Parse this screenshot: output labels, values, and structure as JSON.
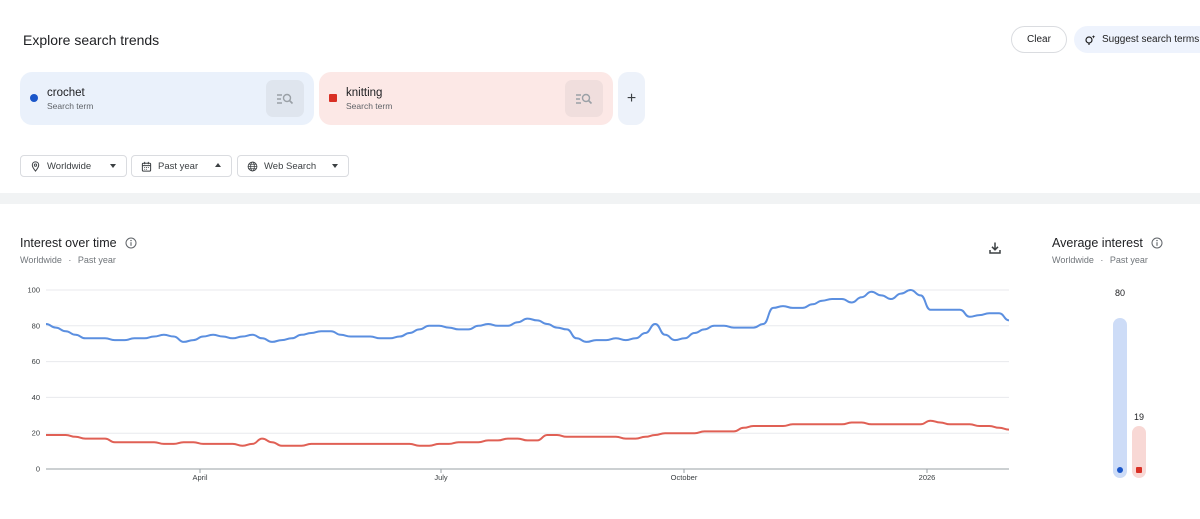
{
  "header": {
    "title": "Explore search trends",
    "clear_label": "Clear",
    "suggest_label": "Suggest search terms"
  },
  "terms": [
    {
      "name": "crochet",
      "subtitle": "Search term",
      "color": "#1a56c9",
      "bg": "#eaf1fb",
      "icon_bg": "#dfe5ee"
    },
    {
      "name": "knitting",
      "subtitle": "Search term",
      "color": "#d93025",
      "bg": "#fce8e6",
      "icon_bg": "#f0dedd"
    }
  ],
  "filters": {
    "location": "Worldwide",
    "period": "Past year",
    "property": "Web Search"
  },
  "interest_over_time": {
    "title": "Interest over time",
    "sub_location": "Worldwide",
    "sub_sep": "·",
    "sub_period": "Past year"
  },
  "average_interest": {
    "title": "Average interest",
    "sub_location": "Worldwide",
    "sub_sep": "·",
    "sub_period": "Past year",
    "values": [
      "80",
      "19"
    ]
  },
  "chart_data": {
    "type": "line",
    "x_tick_labels": [
      "April",
      "July",
      "October",
      "2026"
    ],
    "y_ticks": [
      0,
      20,
      40,
      60,
      80,
      100
    ],
    "ylim": [
      0,
      100
    ],
    "grid": true,
    "series": [
      {
        "name": "crochet",
        "color": "#5b8fe0",
        "values": [
          81,
          79,
          77,
          75,
          73,
          73,
          73,
          72,
          72,
          73,
          73,
          74,
          75,
          74,
          71,
          72,
          74,
          75,
          74,
          73,
          74,
          75,
          73,
          71,
          72,
          73,
          75,
          76,
          77,
          77,
          75,
          74,
          74,
          74,
          73,
          73,
          74,
          76,
          78,
          80,
          80,
          79,
          78,
          78,
          80,
          81,
          80,
          80,
          82,
          84,
          83,
          81,
          79,
          78,
          73,
          71,
          72,
          72,
          73,
          72,
          73,
          76,
          81,
          75,
          72,
          73,
          76,
          78,
          80,
          80,
          79,
          79,
          79,
          81,
          90,
          91,
          90,
          90,
          92,
          94,
          95,
          95,
          93,
          96,
          99,
          97,
          95,
          98,
          100,
          97,
          89,
          89,
          89,
          89,
          85,
          86,
          87,
          87,
          83
        ],
        "average": 80
      },
      {
        "name": "knitting",
        "color": "#e06055",
        "values": [
          19,
          19,
          19,
          18,
          17,
          17,
          17,
          15,
          15,
          15,
          15,
          15,
          14,
          14,
          15,
          15,
          14,
          14,
          14,
          14,
          13,
          14,
          17,
          15,
          13,
          13,
          13,
          14,
          14,
          14,
          14,
          14,
          14,
          14,
          14,
          14,
          14,
          14,
          13,
          13,
          14,
          14,
          15,
          15,
          15,
          16,
          16,
          17,
          17,
          16,
          16,
          19,
          19,
          18,
          18,
          18,
          18,
          18,
          18,
          17,
          17,
          18,
          19,
          20,
          20,
          20,
          20,
          21,
          21,
          21,
          21,
          23,
          24,
          24,
          24,
          24,
          25,
          25,
          25,
          25,
          25,
          25,
          26,
          26,
          25,
          25,
          25,
          25,
          25,
          25,
          27,
          26,
          25,
          25,
          25,
          24,
          24,
          23,
          22
        ],
        "average": 19
      }
    ]
  }
}
